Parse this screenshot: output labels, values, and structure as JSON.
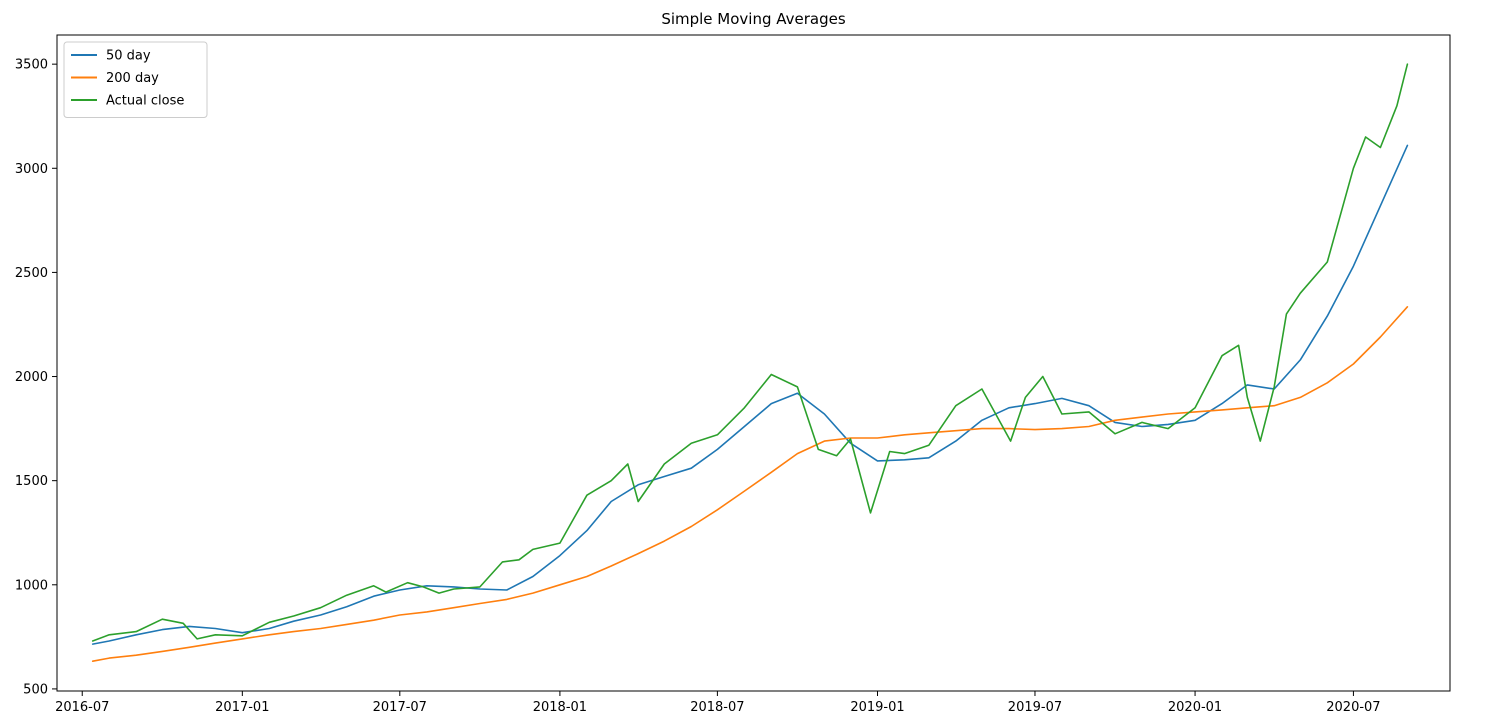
{
  "chart_data": {
    "type": "line",
    "title": "Simple Moving Averages",
    "xlabel": "",
    "ylabel": "",
    "x_axis": {
      "type": "date",
      "range": [
        "2016-06-02",
        "2020-10-20"
      ],
      "ticks": [
        "2016-07-01",
        "2017-01-01",
        "2017-07-01",
        "2018-01-01",
        "2018-07-01",
        "2019-01-01",
        "2019-07-01",
        "2020-01-01",
        "2020-07-01"
      ],
      "tick_labels": [
        "2016-07",
        "2017-01",
        "2017-07",
        "2018-01",
        "2018-07",
        "2019-01",
        "2019-07",
        "2020-01",
        "2020-07"
      ]
    },
    "y_axis": {
      "range": [
        490,
        3640
      ],
      "ticks": [
        500,
        1000,
        1500,
        2000,
        2500,
        3000,
        3500
      ],
      "tick_labels": [
        "500",
        "1000",
        "1500",
        "2000",
        "2500",
        "3000",
        "3500"
      ]
    },
    "grid": false,
    "legend": {
      "position": "top-left",
      "entries": [
        "50 day",
        "200 day",
        "Actual close"
      ]
    },
    "series": [
      {
        "name": "50 day",
        "color": "#1f77b4",
        "points": [
          [
            "2016-07-13",
            715
          ],
          [
            "2016-08-01",
            730
          ],
          [
            "2016-09-01",
            760
          ],
          [
            "2016-10-01",
            785
          ],
          [
            "2016-11-01",
            800
          ],
          [
            "2016-12-01",
            790
          ],
          [
            "2017-01-01",
            770
          ],
          [
            "2017-02-01",
            790
          ],
          [
            "2017-03-01",
            825
          ],
          [
            "2017-04-01",
            855
          ],
          [
            "2017-05-01",
            895
          ],
          [
            "2017-06-01",
            945
          ],
          [
            "2017-07-01",
            975
          ],
          [
            "2017-08-01",
            995
          ],
          [
            "2017-09-01",
            990
          ],
          [
            "2017-10-01",
            980
          ],
          [
            "2017-11-01",
            975
          ],
          [
            "2017-12-01",
            1040
          ],
          [
            "2018-01-01",
            1140
          ],
          [
            "2018-02-01",
            1260
          ],
          [
            "2018-03-01",
            1400
          ],
          [
            "2018-04-01",
            1480
          ],
          [
            "2018-05-01",
            1520
          ],
          [
            "2018-06-01",
            1560
          ],
          [
            "2018-07-01",
            1650
          ],
          [
            "2018-08-01",
            1760
          ],
          [
            "2018-09-01",
            1870
          ],
          [
            "2018-10-01",
            1920
          ],
          [
            "2018-11-01",
            1820
          ],
          [
            "2018-12-01",
            1680
          ],
          [
            "2019-01-01",
            1595
          ],
          [
            "2019-02-01",
            1600
          ],
          [
            "2019-03-01",
            1610
          ],
          [
            "2019-04-01",
            1690
          ],
          [
            "2019-05-01",
            1790
          ],
          [
            "2019-06-01",
            1850
          ],
          [
            "2019-07-01",
            1870
          ],
          [
            "2019-08-01",
            1895
          ],
          [
            "2019-09-01",
            1860
          ],
          [
            "2019-10-01",
            1780
          ],
          [
            "2019-11-01",
            1760
          ],
          [
            "2019-12-01",
            1770
          ],
          [
            "2020-01-01",
            1790
          ],
          [
            "2020-02-01",
            1870
          ],
          [
            "2020-03-01",
            1960
          ],
          [
            "2020-04-01",
            1940
          ],
          [
            "2020-05-01",
            2080
          ],
          [
            "2020-06-01",
            2290
          ],
          [
            "2020-07-01",
            2530
          ],
          [
            "2020-08-01",
            2820
          ],
          [
            "2020-09-01",
            3110
          ]
        ]
      },
      {
        "name": "200 day",
        "color": "#ff7f0e",
        "points": [
          [
            "2016-07-13",
            633
          ],
          [
            "2016-08-01",
            648
          ],
          [
            "2016-09-01",
            662
          ],
          [
            "2016-10-01",
            680
          ],
          [
            "2016-11-01",
            700
          ],
          [
            "2016-12-01",
            720
          ],
          [
            "2017-01-01",
            740
          ],
          [
            "2017-02-01",
            760
          ],
          [
            "2017-03-01",
            775
          ],
          [
            "2017-04-01",
            790
          ],
          [
            "2017-05-01",
            810
          ],
          [
            "2017-06-01",
            830
          ],
          [
            "2017-07-01",
            855
          ],
          [
            "2017-08-01",
            870
          ],
          [
            "2017-09-01",
            890
          ],
          [
            "2017-10-01",
            910
          ],
          [
            "2017-11-01",
            930
          ],
          [
            "2017-12-01",
            960
          ],
          [
            "2018-01-01",
            1000
          ],
          [
            "2018-02-01",
            1040
          ],
          [
            "2018-03-01",
            1090
          ],
          [
            "2018-04-01",
            1150
          ],
          [
            "2018-05-01",
            1210
          ],
          [
            "2018-06-01",
            1280
          ],
          [
            "2018-07-01",
            1360
          ],
          [
            "2018-08-01",
            1450
          ],
          [
            "2018-09-01",
            1540
          ],
          [
            "2018-10-01",
            1630
          ],
          [
            "2018-11-01",
            1690
          ],
          [
            "2018-12-01",
            1705
          ],
          [
            "2019-01-01",
            1705
          ],
          [
            "2019-02-01",
            1720
          ],
          [
            "2019-03-01",
            1730
          ],
          [
            "2019-04-01",
            1740
          ],
          [
            "2019-05-01",
            1750
          ],
          [
            "2019-06-01",
            1750
          ],
          [
            "2019-07-01",
            1745
          ],
          [
            "2019-08-01",
            1750
          ],
          [
            "2019-09-01",
            1760
          ],
          [
            "2019-10-01",
            1790
          ],
          [
            "2019-11-01",
            1805
          ],
          [
            "2019-12-01",
            1820
          ],
          [
            "2020-01-01",
            1830
          ],
          [
            "2020-02-01",
            1840
          ],
          [
            "2020-03-01",
            1850
          ],
          [
            "2020-04-01",
            1860
          ],
          [
            "2020-05-01",
            1900
          ],
          [
            "2020-06-01",
            1970
          ],
          [
            "2020-07-01",
            2060
          ],
          [
            "2020-08-01",
            2190
          ],
          [
            "2020-09-01",
            2335
          ]
        ]
      },
      {
        "name": "Actual close",
        "color": "#2ca02c",
        "points": [
          [
            "2016-07-13",
            730
          ],
          [
            "2016-08-01",
            760
          ],
          [
            "2016-09-01",
            775
          ],
          [
            "2016-10-01",
            835
          ],
          [
            "2016-10-25",
            815
          ],
          [
            "2016-11-10",
            740
          ],
          [
            "2016-12-01",
            760
          ],
          [
            "2017-01-01",
            755
          ],
          [
            "2017-02-01",
            820
          ],
          [
            "2017-03-01",
            850
          ],
          [
            "2017-04-01",
            890
          ],
          [
            "2017-05-01",
            950
          ],
          [
            "2017-06-01",
            995
          ],
          [
            "2017-06-15",
            965
          ],
          [
            "2017-07-10",
            1010
          ],
          [
            "2017-07-28",
            990
          ],
          [
            "2017-08-15",
            960
          ],
          [
            "2017-09-01",
            980
          ],
          [
            "2017-10-01",
            990
          ],
          [
            "2017-10-27",
            1110
          ],
          [
            "2017-11-15",
            1120
          ],
          [
            "2017-12-01",
            1170
          ],
          [
            "2018-01-01",
            1200
          ],
          [
            "2018-02-01",
            1430
          ],
          [
            "2018-03-01",
            1500
          ],
          [
            "2018-03-20",
            1580
          ],
          [
            "2018-04-01",
            1400
          ],
          [
            "2018-05-01",
            1580
          ],
          [
            "2018-06-01",
            1680
          ],
          [
            "2018-07-01",
            1720
          ],
          [
            "2018-08-01",
            1850
          ],
          [
            "2018-09-01",
            2010
          ],
          [
            "2018-10-01",
            1950
          ],
          [
            "2018-10-25",
            1650
          ],
          [
            "2018-11-15",
            1620
          ],
          [
            "2018-12-01",
            1700
          ],
          [
            "2018-12-24",
            1345
          ],
          [
            "2019-01-15",
            1640
          ],
          [
            "2019-02-01",
            1630
          ],
          [
            "2019-03-01",
            1670
          ],
          [
            "2019-04-01",
            1860
          ],
          [
            "2019-05-01",
            1940
          ],
          [
            "2019-06-03",
            1690
          ],
          [
            "2019-06-20",
            1900
          ],
          [
            "2019-07-10",
            2000
          ],
          [
            "2019-08-01",
            1820
          ],
          [
            "2019-09-01",
            1830
          ],
          [
            "2019-10-01",
            1725
          ],
          [
            "2019-11-01",
            1780
          ],
          [
            "2019-12-01",
            1750
          ],
          [
            "2020-01-01",
            1850
          ],
          [
            "2020-02-01",
            2100
          ],
          [
            "2020-02-20",
            2150
          ],
          [
            "2020-03-01",
            1900
          ],
          [
            "2020-03-16",
            1690
          ],
          [
            "2020-04-01",
            1950
          ],
          [
            "2020-04-15",
            2300
          ],
          [
            "2020-05-01",
            2400
          ],
          [
            "2020-06-01",
            2550
          ],
          [
            "2020-07-01",
            3000
          ],
          [
            "2020-07-15",
            3150
          ],
          [
            "2020-08-01",
            3100
          ],
          [
            "2020-08-20",
            3300
          ],
          [
            "2020-09-01",
            3500
          ]
        ]
      }
    ]
  }
}
